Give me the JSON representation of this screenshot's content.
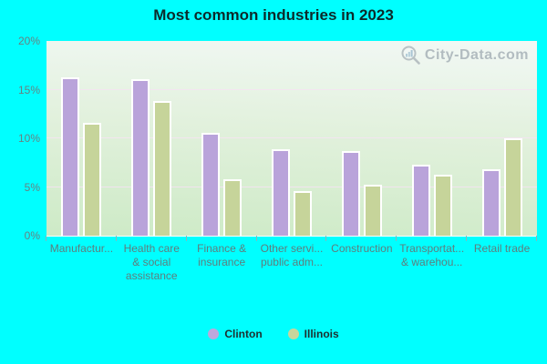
{
  "title": "Most common industries in 2023",
  "watermark": {
    "text": "City-Data.com",
    "icon": "magnifier-bar-chart-icon"
  },
  "colors": {
    "background": "#00ffff",
    "clinton_bar": "#b9a3da",
    "illinois_bar": "#c6d49a",
    "bar_border": "#ffffff",
    "plot_gradient_top": "#f2f8f5",
    "plot_gradient_bottom": "#cdeac6",
    "gridline": "#f3e4f0",
    "axis_text": "#678282",
    "title_text": "#0c2a2a",
    "watermark_text": "#8d99a3"
  },
  "y_axis": {
    "tick_labels": [
      "20%",
      "15%",
      "10%",
      "5%",
      "0%"
    ],
    "gridlines_at": [
      15,
      10,
      5
    ]
  },
  "legend": [
    {
      "label": "Clinton",
      "color": "#bda7dc"
    },
    {
      "label": "Illinois",
      "color": "#c9d59c"
    }
  ],
  "chart_data": {
    "type": "bar",
    "title": "Most common industries in 2023",
    "categories": [
      "Manufactur...",
      "Health care\n& social\nassistance",
      "Finance &\ninsurance",
      "Other servi...\npublic adm...",
      "Construction",
      "Transportat...\n& warehou...",
      "Retail trade"
    ],
    "series": [
      {
        "name": "Clinton",
        "color": "#b9a3da",
        "values": [
          16.3,
          16.1,
          10.6,
          8.9,
          8.7,
          7.3,
          6.8
        ]
      },
      {
        "name": "Illinois",
        "color": "#c6d49a",
        "values": [
          11.6,
          13.8,
          5.8,
          4.6,
          5.2,
          6.3,
          10.0
        ]
      }
    ],
    "unit": "%",
    "ylim": [
      0,
      20
    ],
    "xlabel": "",
    "ylabel": "",
    "grid": "horizontal",
    "legend_position": "bottom-center"
  }
}
